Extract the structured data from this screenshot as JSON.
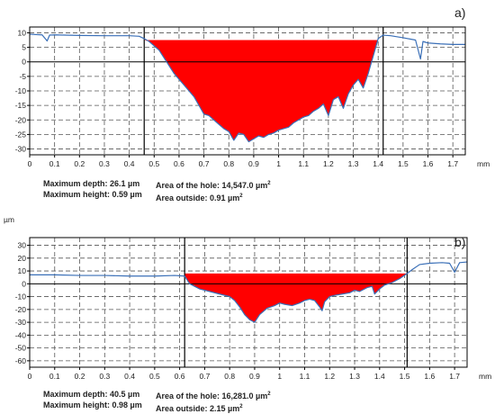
{
  "chart_data": [
    {
      "type": "area",
      "panel_label": "a)",
      "xlabel": "mm",
      "ylabel": "",
      "xlim": [
        0,
        1.75
      ],
      "ylim": [
        -32,
        12
      ],
      "x_ticks": [
        0,
        0.1,
        0.2,
        0.3,
        0.4,
        0.5,
        0.6,
        0.7,
        0.8,
        0.9,
        1,
        1.1,
        1.2,
        1.3,
        1.4,
        1.5,
        1.6,
        1.7
      ],
      "x_tick_labels": [
        "0",
        "0.1",
        "0.2",
        "0.3",
        "0.4",
        "0.5",
        "0.6",
        "0.7",
        "0.8",
        "0.9",
        "1",
        "1.1",
        "1.2",
        "1.3",
        "1.4",
        "1.5",
        "1.6",
        "1.7"
      ],
      "y_ticks": [
        10,
        5,
        0,
        -5,
        -10,
        -15,
        -20,
        -25,
        -30
      ],
      "y_tick_labels": [
        "10",
        "5",
        "0",
        "-5",
        "-10",
        "-15",
        "-20",
        "-25",
        "-30"
      ],
      "grid": true,
      "vertical_markers": [
        0.46,
        1.42
      ],
      "hole_reference_level": 7.5,
      "profile": {
        "x": [
          0,
          0.05,
          0.07,
          0.08,
          0.1,
          0.2,
          0.3,
          0.4,
          0.44,
          0.46,
          0.48,
          0.52,
          0.55,
          0.58,
          0.6,
          0.62,
          0.64,
          0.66,
          0.68,
          0.7,
          0.72,
          0.74,
          0.76,
          0.78,
          0.8,
          0.82,
          0.84,
          0.86,
          0.88,
          0.9,
          0.92,
          0.94,
          0.96,
          0.98,
          1.0,
          1.02,
          1.04,
          1.06,
          1.08,
          1.1,
          1.12,
          1.14,
          1.16,
          1.18,
          1.2,
          1.22,
          1.24,
          1.26,
          1.28,
          1.3,
          1.32,
          1.34,
          1.36,
          1.38,
          1.4,
          1.42,
          1.45,
          1.5,
          1.55,
          1.57,
          1.58,
          1.6,
          1.65,
          1.7,
          1.75
        ],
        "y": [
          9.5,
          9.3,
          7.2,
          9.2,
          9.3,
          9.1,
          9.0,
          9.0,
          8.8,
          8.0,
          7.0,
          4.0,
          0.0,
          -4.0,
          -6.0,
          -8.0,
          -10.0,
          -12.0,
          -15.0,
          -18.0,
          -18.5,
          -20.0,
          -21.5,
          -23.0,
          -24.0,
          -27.0,
          -24.5,
          -25.0,
          -27.5,
          -26.5,
          -25.5,
          -26.0,
          -25.0,
          -24.5,
          -23.5,
          -23.0,
          -22.5,
          -21.0,
          -20.0,
          -19.0,
          -18.5,
          -17.0,
          -16.0,
          -14.5,
          -18.5,
          -13.0,
          -12.0,
          -16.0,
          -11.0,
          -8.0,
          -6.0,
          -9.0,
          -4.0,
          2.0,
          8.0,
          9.2,
          9.0,
          8.3,
          7.5,
          1.0,
          7.0,
          6.5,
          6.2,
          6.0,
          6.0
        ]
      },
      "annotations": {
        "max_depth": "Maximum depth: 26.1 µm",
        "max_height": "Maximum height: 0.59 µm",
        "area_hole": "Area of the hole: 14,547.0 µm",
        "area_outside": "Area outside: 0.91 µm",
        "area_unit_exp": "2"
      }
    },
    {
      "type": "area",
      "panel_label": "b)",
      "xlabel": "mm",
      "ylabel": "µm",
      "xlim": [
        0,
        1.75
      ],
      "ylim": [
        -65,
        36
      ],
      "x_ticks": [
        0,
        0.1,
        0.2,
        0.3,
        0.4,
        0.5,
        0.6,
        0.7,
        0.8,
        0.9,
        1,
        1.1,
        1.2,
        1.3,
        1.4,
        1.5,
        1.6,
        1.7
      ],
      "x_tick_labels": [
        "0",
        "0.1",
        "0.2",
        "0.3",
        "0.4",
        "0.5",
        "0.6",
        "0.7",
        "0.8",
        "0.9",
        "1",
        "1.1",
        "1.2",
        "1.3",
        "1.4",
        "1.5",
        "1.6",
        "1.7"
      ],
      "y_ticks": [
        30,
        20,
        10,
        0,
        -10,
        -20,
        -30,
        -40,
        -50,
        -60
      ],
      "y_tick_labels": [
        "30",
        "20",
        "10",
        "0",
        "-10",
        "-20",
        "-30",
        "-40",
        "-50",
        "-60"
      ],
      "grid": true,
      "vertical_markers": [
        0.62,
        1.51
      ],
      "hole_reference_level": 8.0,
      "profile": {
        "x": [
          0,
          0.1,
          0.2,
          0.3,
          0.4,
          0.5,
          0.58,
          0.62,
          0.64,
          0.68,
          0.72,
          0.76,
          0.8,
          0.82,
          0.84,
          0.86,
          0.88,
          0.9,
          0.92,
          0.95,
          0.98,
          1.0,
          1.02,
          1.05,
          1.08,
          1.1,
          1.12,
          1.14,
          1.16,
          1.17,
          1.18,
          1.2,
          1.22,
          1.25,
          1.28,
          1.3,
          1.32,
          1.35,
          1.37,
          1.38,
          1.4,
          1.42,
          1.45,
          1.48,
          1.51,
          1.53,
          1.56,
          1.6,
          1.65,
          1.68,
          1.7,
          1.72,
          1.75
        ],
        "y": [
          7.0,
          7.0,
          6.5,
          6.5,
          6.0,
          6.0,
          6.5,
          6.0,
          0.0,
          -4.0,
          -6.0,
          -8.0,
          -10.0,
          -13.0,
          -18.0,
          -24.0,
          -28.0,
          -30.0,
          -24.0,
          -19.0,
          -17.0,
          -15.0,
          -16.0,
          -17.0,
          -15.0,
          -13.0,
          -12.0,
          -13.0,
          -18.0,
          -21.0,
          -14.0,
          -10.0,
          -9.0,
          -8.0,
          -7.0,
          -5.0,
          -6.0,
          -3.0,
          -2.0,
          -8.0,
          -4.0,
          -1.0,
          1.0,
          4.0,
          8.0,
          11.0,
          15.0,
          16.0,
          16.5,
          16.0,
          9.0,
          16.5,
          17.0
        ]
      },
      "annotations": {
        "max_depth": "Maximum depth: 40.5 µm",
        "max_height": "Maximum height: 0.98 µm",
        "area_hole": "Area of the hole: 16,281.0 µm",
        "area_outside": "Area outside: 2.15 µm",
        "area_unit_exp": "2"
      }
    }
  ],
  "colors": {
    "profile_line": "#3a6fb7",
    "hole_fill": "#ff0000",
    "grid": "#555555",
    "axis": "#000000",
    "marker": "#000000"
  }
}
